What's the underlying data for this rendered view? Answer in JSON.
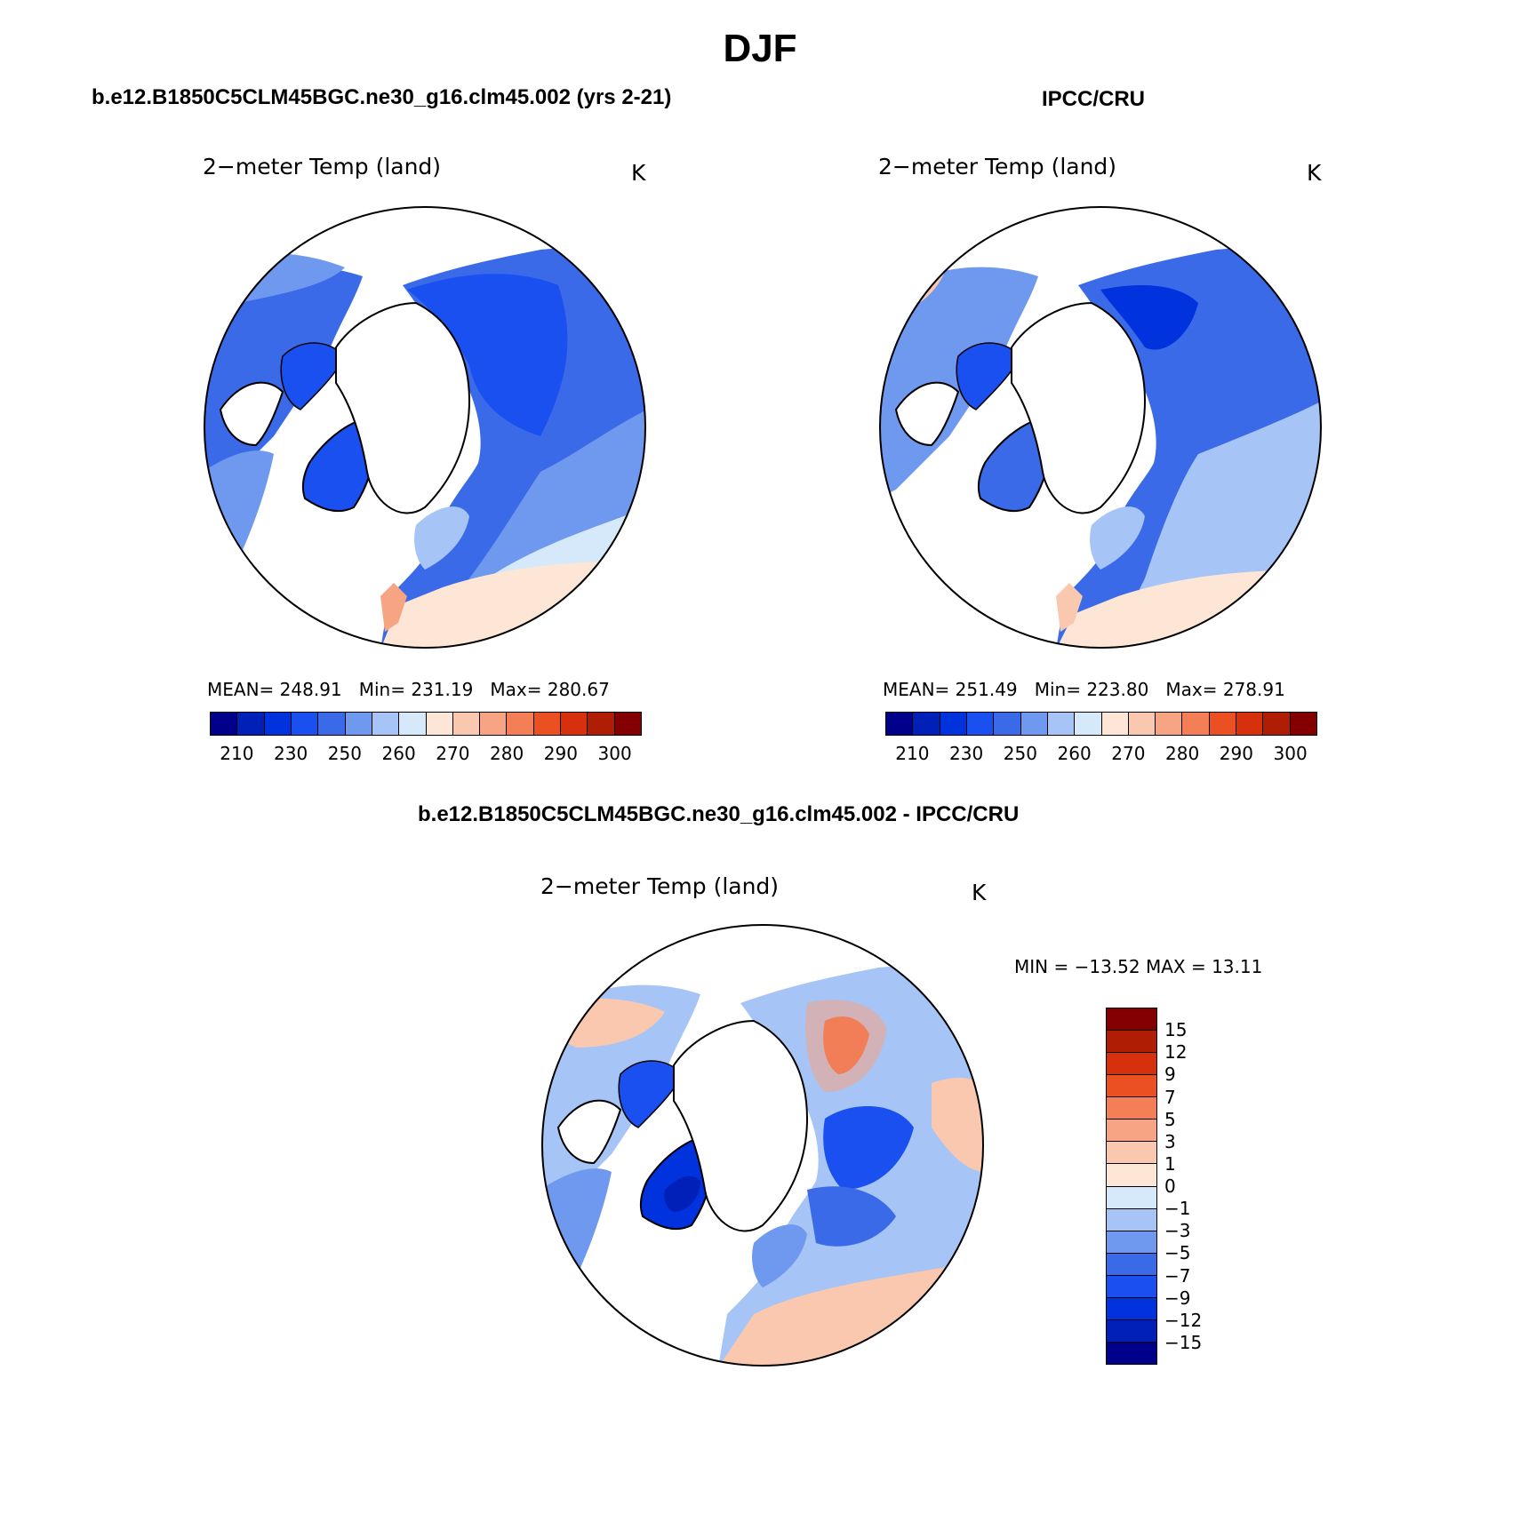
{
  "title": "DJF",
  "panels": {
    "model": {
      "case_title": "b.e12.B1850C5CLM45BGC.ne30_g16.clm45.002 (yrs 2-21)",
      "var_title": "2−meter Temp (land)",
      "units": "K",
      "mean_label": "MEAN=",
      "mean": "248.91",
      "min_label": "Min=",
      "min": "231.19",
      "max_label": "Max=",
      "max": "280.67"
    },
    "obs": {
      "case_title": "IPCC/CRU",
      "var_title": "2−meter Temp (land)",
      "units": "K",
      "mean_label": "MEAN=",
      "mean": "251.49",
      "min_label": "Min=",
      "min": "223.80",
      "max_label": "Max=",
      "max": "278.91"
    },
    "diff": {
      "case_title": "b.e12.B1850C5CLM45BGC.ne30_g16.clm45.002 - IPCC/CRU",
      "var_title": "2−meter Temp (land)",
      "units": "K",
      "minmax_label": "MIN = −13.52 MAX =   13.11"
    }
  },
  "abs_colorbar": {
    "colors": [
      "#00008b",
      "#0020b8",
      "#0033dd",
      "#1a4ff0",
      "#3b6ae8",
      "#6f98ef",
      "#a6c4f6",
      "#d6e9fb",
      "#fde6d6",
      "#f9c8ae",
      "#f6a482",
      "#f47e55",
      "#eb5022",
      "#d6300c",
      "#b01d05",
      "#840000"
    ],
    "tick_labels": [
      "210",
      "230",
      "250",
      "260",
      "270",
      "280",
      "290",
      "300"
    ]
  },
  "diff_colorbar": {
    "colors_top_to_bottom": [
      "#840000",
      "#b01d05",
      "#d6300c",
      "#eb5022",
      "#f47e55",
      "#f6a482",
      "#f9c8ae",
      "#fde6d6",
      "#d6e9fb",
      "#a6c4f6",
      "#6f98ef",
      "#3b6ae8",
      "#1a4ff0",
      "#0033dd",
      "#0020b8",
      "#00008b"
    ],
    "tick_labels_top_to_bottom": [
      "15",
      "12",
      "9",
      "7",
      "5",
      "3",
      "1",
      "0",
      "−1",
      "−3",
      "−5",
      "−7",
      "−9",
      "−12",
      "−15"
    ]
  }
}
